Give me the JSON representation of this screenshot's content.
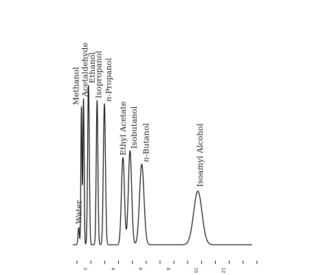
{
  "chart_data": {
    "type": "line",
    "xlabel": "",
    "ylabel": "",
    "xlim": [
      -0.6,
      13.2
    ],
    "ylim": [
      0,
      1
    ],
    "grid": false,
    "legend": "none",
    "x_ticks": [
      0,
      1,
      2,
      3,
      4,
      5,
      6,
      7,
      8,
      9,
      10,
      11,
      12,
      13
    ],
    "x_tick_labels": [
      {
        "x": 0.5,
        "label": "2"
      },
      {
        "x": 2.5,
        "label": "4"
      },
      {
        "x": 4.5,
        "label": "6"
      },
      {
        "x": 6.5,
        "label": "8"
      },
      {
        "x": 8.5,
        "label": "10"
      },
      {
        "x": 10.5,
        "label": "12"
      }
    ],
    "series": [
      {
        "peaks": [
          {
            "label": "Water",
            "x": 0.12,
            "height": 0.1,
            "width": 0.05
          },
          {
            "label": "Methanol",
            "x": 0.32,
            "height": 0.82,
            "width": 0.04
          },
          {
            "label": "Acetaldehyde",
            "x": 0.47,
            "height": 0.87,
            "width": 0.045
          },
          {
            "label": "Ethanol",
            "x": 0.83,
            "height": 0.95,
            "width": 0.06
          },
          {
            "label": "Isopropanol",
            "x": 1.45,
            "height": 0.86,
            "width": 0.06
          },
          {
            "label": "n-Propanol",
            "label_italic_prefix": "n",
            "label_rest": "-Propanol",
            "x": 1.98,
            "height": 0.84,
            "width": 0.075
          },
          {
            "label": "Ethyl Acetate",
            "x": 3.32,
            "height": 0.52,
            "width": 0.11
          },
          {
            "label": "Isobutanol",
            "x": 3.83,
            "height": 0.56,
            "width": 0.12
          },
          {
            "label": "n-Butanol",
            "label_italic_prefix": "n",
            "label_rest": "-Butanol",
            "x": 4.68,
            "height": 0.48,
            "width": 0.16
          },
          {
            "label": "Isoamyl Alcohol",
            "x": 8.73,
            "height": 0.32,
            "width": 0.3
          }
        ]
      }
    ]
  }
}
